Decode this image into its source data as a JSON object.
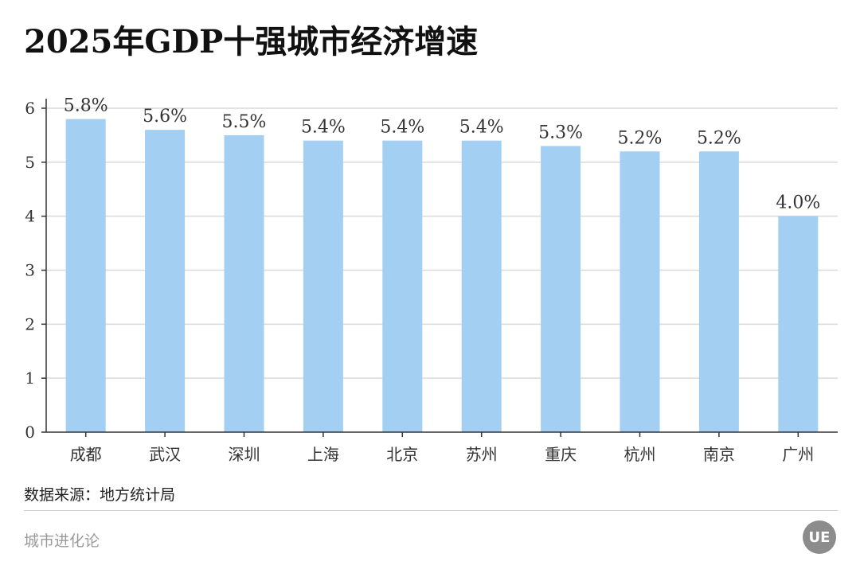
{
  "header": {
    "title": "2025年GDP十强城市经济增速"
  },
  "footer": {
    "source": "数据来源：地方统计局",
    "brand": "城市进化论",
    "logo_text": "UE"
  },
  "chart_data": {
    "type": "bar",
    "categories": [
      "成都",
      "武汉",
      "深圳",
      "上海",
      "北京",
      "苏州",
      "重庆",
      "杭州",
      "南京",
      "广州"
    ],
    "values": [
      5.8,
      5.6,
      5.5,
      5.4,
      5.4,
      5.4,
      5.3,
      5.2,
      5.2,
      4.0
    ],
    "value_labels": [
      "5.8%",
      "5.6%",
      "5.5%",
      "5.4%",
      "5.4%",
      "5.4%",
      "5.3%",
      "5.2%",
      "5.2%",
      "4.0%"
    ],
    "title": "2025年GDP十强城市经济增速",
    "xlabel": "",
    "ylabel": "",
    "ylim": [
      0,
      6
    ],
    "yticks": [
      0,
      1,
      2,
      3,
      4,
      5,
      6
    ],
    "grid": true,
    "bar_color": "#a3cff2"
  }
}
